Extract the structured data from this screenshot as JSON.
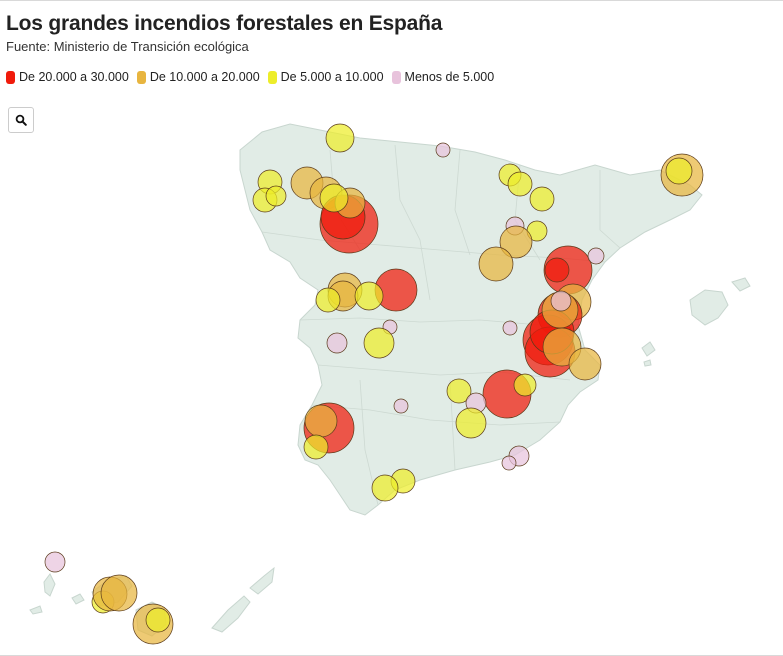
{
  "title": "Los grandes incendios forestales en España",
  "subtitle": "Fuente: Ministerio de Transición ecológica",
  "legend": [
    {
      "label": "De 20.000 a 30.000",
      "color": "#f01b0b"
    },
    {
      "label": "De 10.000 a 20.000",
      "color": "#e8b53f"
    },
    {
      "label": "De 5.000 a 10.000",
      "color": "#eded2a"
    },
    {
      "label": "Menos de 5.000",
      "color": "#e8c3dc"
    }
  ],
  "search_icon": "search-icon",
  "colors": {
    "land": "#e1ece6",
    "land_stroke": "#c8d6cf"
  }
}
